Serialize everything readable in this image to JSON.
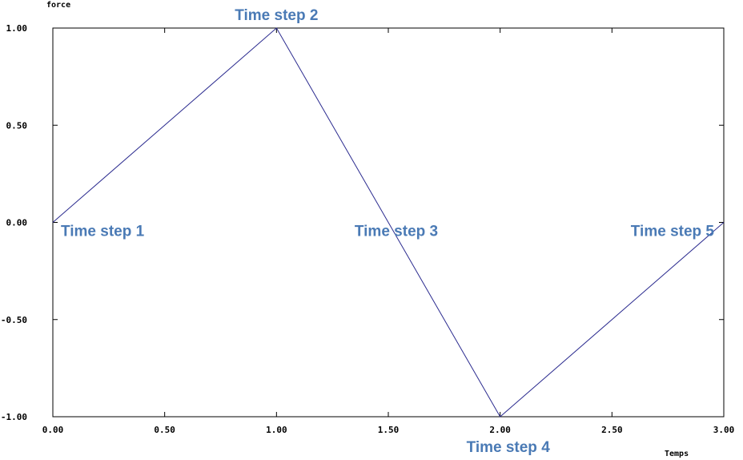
{
  "chart_data": {
    "type": "line",
    "xlabel": "Temps",
    "ylabel": "force",
    "xlim": [
      0,
      3
    ],
    "ylim": [
      -1,
      1
    ],
    "x_ticks": [
      "0.00",
      "0.50",
      "1.00",
      "1.50",
      "2.00",
      "2.50",
      "3.00"
    ],
    "y_ticks": [
      "1.00",
      "0.50",
      "0.00",
      "-0.50",
      "-1.00"
    ],
    "grid": false,
    "series": [
      {
        "x": [
          0,
          1,
          2,
          3
        ],
        "y": [
          0,
          1,
          -1,
          0
        ],
        "color": "#2b2b8f"
      }
    ],
    "annotations": [
      {
        "text": "Time step 1",
        "x": 0,
        "y": 0
      },
      {
        "text": "Time step 2",
        "x": 1,
        "y": 1
      },
      {
        "text": "Time step 3",
        "x": 1.5,
        "y": 0
      },
      {
        "text": "Time step 4",
        "x": 2,
        "y": -1
      },
      {
        "text": "Time step 5",
        "x": 3,
        "y": 0
      }
    ]
  }
}
